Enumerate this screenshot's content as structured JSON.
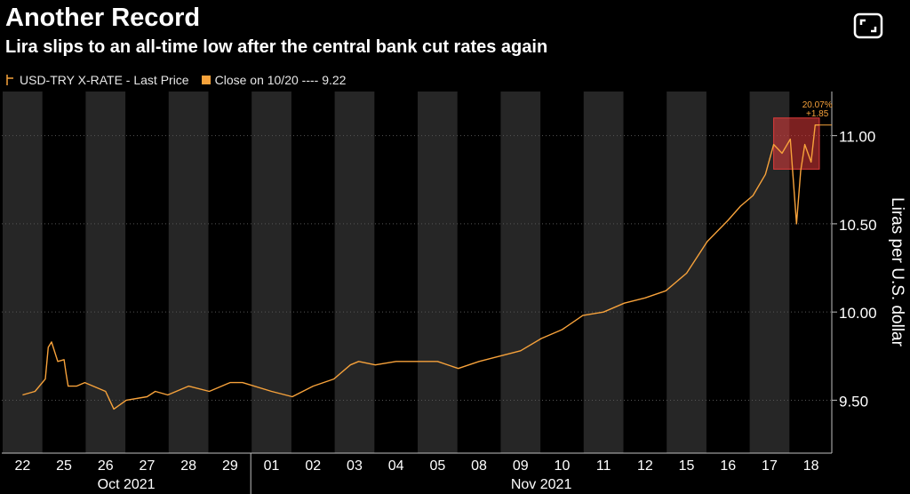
{
  "header": {
    "title": "Another Record",
    "subtitle": "Lira slips to an all-time low after the central bank cut rates again",
    "expand_icon": "expand-icon"
  },
  "legend": {
    "series_label": "USD-TRY X-RATE - Last Price",
    "close_label": "Close on 10/20 ---- 9.22"
  },
  "colors": {
    "background": "#000000",
    "band": "#262626",
    "line": "#f7a23b",
    "highlight": "#e03b3b",
    "axis_text": "#ffffff",
    "annotation": "#f7a23b"
  },
  "chart_data": {
    "type": "line",
    "title": "Another Record",
    "subtitle": "Lira slips to an all-time low after the central bank cut rates again",
    "ylabel": "Liras per U.S. dollar",
    "xlabel": "",
    "ylim": [
      9.2,
      11.25
    ],
    "y_ticks": [
      9.5,
      10.0,
      10.5,
      11.0
    ],
    "y_tick_labels": [
      "9.50",
      "10.00",
      "10.50",
      "11.00"
    ],
    "categories": [
      "22",
      "25",
      "26",
      "27",
      "28",
      "29",
      "01",
      "02",
      "03",
      "04",
      "05",
      "08",
      "09",
      "10",
      "11",
      "12",
      "15",
      "16",
      "17",
      "18"
    ],
    "month_labels": [
      "Oct 2021",
      "Nov 2021"
    ],
    "month_spans": [
      [
        0,
        5
      ],
      [
        6,
        19
      ]
    ],
    "grid": false,
    "legend_position": "top-left",
    "series": [
      {
        "name": "USD-TRY X-RATE - Last Price",
        "x": [
          0,
          0.3,
          0.55,
          0.62,
          0.7,
          0.85,
          1.0,
          1.05,
          1.1,
          1.3,
          1.5,
          2.0,
          2.2,
          2.5,
          3.0,
          3.2,
          3.5,
          4.0,
          4.5,
          5.0,
          5.3,
          6.0,
          6.5,
          7.0,
          7.5,
          7.9,
          8.1,
          8.5,
          9.0,
          9.5,
          10.0,
          10.5,
          11.0,
          11.5,
          12.0,
          12.5,
          13.0,
          13.5,
          14.0,
          14.5,
          15.0,
          15.5,
          16.0,
          16.5,
          17.0,
          17.3,
          17.6,
          17.9,
          18.1,
          18.3,
          18.5,
          18.65,
          18.75,
          18.85,
          19.0,
          19.1,
          19.2
        ],
        "y": [
          9.53,
          9.55,
          9.62,
          9.8,
          9.83,
          9.72,
          9.73,
          9.65,
          9.58,
          9.58,
          9.6,
          9.55,
          9.45,
          9.5,
          9.52,
          9.55,
          9.53,
          9.58,
          9.55,
          9.6,
          9.6,
          9.55,
          9.52,
          9.58,
          9.62,
          9.7,
          9.72,
          9.7,
          9.72,
          9.72,
          9.72,
          9.68,
          9.72,
          9.75,
          9.78,
          9.85,
          9.9,
          9.98,
          10.0,
          10.05,
          10.08,
          10.12,
          10.22,
          10.4,
          10.52,
          10.6,
          10.66,
          10.78,
          10.95,
          10.9,
          10.98,
          10.5,
          10.8,
          10.95,
          10.85,
          11.06,
          11.06
        ]
      }
    ],
    "highlight": {
      "x_start": 18.1,
      "x_end": 19.2,
      "y_low": 10.81,
      "y_high": 11.1
    },
    "annotations": [
      {
        "text": "20.07%",
        "x": 19.15,
        "y": 11.16
      },
      {
        "text": "+1.85",
        "x": 19.15,
        "y": 11.11
      }
    ]
  }
}
